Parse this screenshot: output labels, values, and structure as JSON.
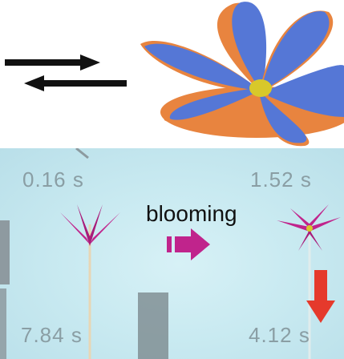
{
  "times": {
    "top_left": "0.16 s",
    "top_right": "1.52 s",
    "bottom_left": "7.84 s",
    "bottom_right": "4.12 s"
  },
  "center_label": "blooming",
  "colors": {
    "petal_blue": "#5577d6",
    "petal_edge": "#e8843f",
    "center_yellow": "#d8c82a",
    "flower_magenta": "#c0248c",
    "arrow_red": "#e53a2c",
    "background_cyan": "#c6e8ef"
  },
  "icons": [
    "forward-arrow-icon",
    "backward-arrow-icon",
    "blooming-arrow-icon",
    "down-arrow-icon"
  ]
}
